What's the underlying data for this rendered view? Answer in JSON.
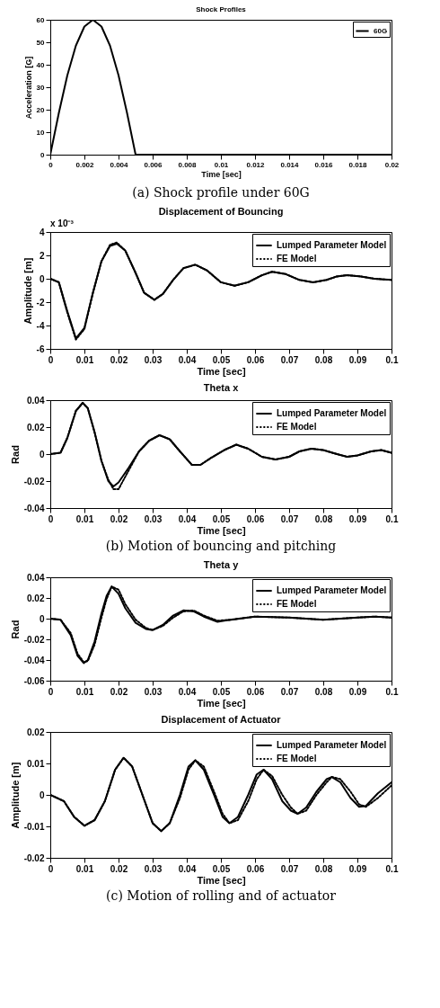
{
  "chart_data": [
    {
      "type": "line",
      "title": "Shock Profiles",
      "xlabel": "Time [sec]",
      "ylabel": "Acceleration [G]",
      "legend": "top right",
      "xlim": [
        0,
        0.02
      ],
      "xticks": [
        0,
        0.002,
        0.004,
        0.006,
        0.008,
        0.01,
        0.012,
        0.014,
        0.016,
        0.018,
        0.02
      ],
      "ylim": [
        0,
        60
      ],
      "yticks": [
        0,
        10,
        20,
        30,
        40,
        50,
        60
      ],
      "annotations": [
        "(a) Shock profile under 60G"
      ],
      "x": [
        0,
        0.0005,
        0.001,
        0.0015,
        0.002,
        0.0025,
        0.003,
        0.0035,
        0.004,
        0.0045,
        0.005,
        0.02
      ],
      "series": [
        {
          "name": "60G",
          "color": "#000000",
          "line_style": "solid",
          "values": [
            0,
            18.5,
            35.3,
            48.5,
            57,
            60,
            57,
            48.5,
            35.3,
            18.5,
            0,
            0
          ]
        }
      ]
    },
    {
      "type": "line",
      "title": "Displacement of Bouncing",
      "xlabel": "Time [sec]",
      "ylabel": "Amplitude [m]",
      "legend": "top right",
      "xlim": [
        0,
        0.1
      ],
      "xticks": [
        0,
        0.01,
        0.02,
        0.03,
        0.04,
        0.05,
        0.06,
        0.07,
        0.08,
        0.09,
        0.1
      ],
      "ylim": [
        -6,
        4
      ],
      "yticks": [
        -6,
        -4,
        -2,
        0,
        2,
        4
      ],
      "subtitle": "x 10⁻³",
      "x": [
        0,
        0.0025,
        0.005,
        0.0075,
        0.01,
        0.0125,
        0.015,
        0.0175,
        0.0195,
        0.022,
        0.025,
        0.0275,
        0.0305,
        0.033,
        0.036,
        0.039,
        0.0425,
        0.046,
        0.05,
        0.054,
        0.058,
        0.062,
        0.065,
        0.069,
        0.073,
        0.077,
        0.081,
        0.084,
        0.087,
        0.091,
        0.095,
        0.1
      ],
      "series": [
        {
          "name": "Lumped Parameter Model",
          "color": "#000000",
          "line_style": "solid",
          "values": [
            0,
            -0.3,
            -2.8,
            -5.1,
            -4.2,
            -1.2,
            1.5,
            2.8,
            3.0,
            2.4,
            0.5,
            -1.2,
            -1.8,
            -1.3,
            -0.1,
            0.9,
            1.2,
            0.7,
            -0.3,
            -0.6,
            -0.3,
            0.3,
            0.6,
            0.4,
            -0.1,
            -0.3,
            -0.1,
            0.2,
            0.3,
            0.2,
            0,
            -0.1
          ]
        },
        {
          "name": "FE Model",
          "color": "#000000",
          "line_style": "dotted",
          "values": [
            0,
            -0.3,
            -2.9,
            -5.2,
            -4.3,
            -1.2,
            1.5,
            2.9,
            3.1,
            2.4,
            0.5,
            -1.2,
            -1.8,
            -1.3,
            -0.1,
            0.9,
            1.2,
            0.7,
            -0.3,
            -0.6,
            -0.3,
            0.3,
            0.6,
            0.4,
            -0.1,
            -0.3,
            -0.1,
            0.2,
            0.3,
            0.2,
            0,
            -0.1
          ]
        }
      ]
    },
    {
      "type": "line",
      "title": "Theta x",
      "xlabel": "Time [sec]",
      "ylabel": "Rad",
      "legend": "top right",
      "xlim": [
        0,
        0.1
      ],
      "xticks": [
        0,
        0.01,
        0.02,
        0.03,
        0.04,
        0.05,
        0.06,
        0.07,
        0.08,
        0.09,
        0.1
      ],
      "ylim": [
        -0.04,
        0.04
      ],
      "yticks": [
        -0.04,
        -0.02,
        0,
        0.02,
        0.04
      ],
      "annotations": [
        "(b) Motion of bouncing and pitching"
      ],
      "x": [
        0,
        0.003,
        0.005,
        0.0075,
        0.0095,
        0.011,
        0.013,
        0.015,
        0.017,
        0.0185,
        0.02,
        0.023,
        0.026,
        0.029,
        0.032,
        0.035,
        0.038,
        0.0415,
        0.044,
        0.047,
        0.051,
        0.0545,
        0.058,
        0.062,
        0.066,
        0.07,
        0.073,
        0.0765,
        0.08,
        0.084,
        0.087,
        0.09,
        0.094,
        0.097,
        0.1
      ],
      "series": [
        {
          "name": "Lumped Parameter Model",
          "color": "#000000",
          "line_style": "solid",
          "values": [
            0,
            0.001,
            0.012,
            0.032,
            0.038,
            0.034,
            0.016,
            -0.005,
            -0.02,
            -0.024,
            -0.021,
            -0.01,
            0.002,
            0.01,
            0.014,
            0.011,
            0.002,
            -0.008,
            -0.008,
            -0.003,
            0.003,
            0.007,
            0.004,
            -0.002,
            -0.004,
            -0.002,
            0.002,
            0.004,
            0.003,
            0,
            -0.002,
            -0.001,
            0.002,
            0.003,
            0.001
          ]
        },
        {
          "name": "FE Model",
          "color": "#000000",
          "line_style": "dotted",
          "values": [
            0,
            0.001,
            0.012,
            0.032,
            0.038,
            0.034,
            0.016,
            -0.005,
            -0.019,
            -0.026,
            -0.026,
            -0.012,
            0.002,
            0.01,
            0.014,
            0.011,
            0.002,
            -0.008,
            -0.008,
            -0.003,
            0.003,
            0.007,
            0.004,
            -0.002,
            -0.004,
            -0.002,
            0.002,
            0.004,
            0.003,
            0,
            -0.002,
            -0.001,
            0.002,
            0.003,
            0.001
          ]
        }
      ]
    },
    {
      "type": "line",
      "title": "Theta y",
      "xlabel": "Time [sec]",
      "ylabel": "Rad",
      "legend": "top right",
      "xlim": [
        0,
        0.1
      ],
      "xticks": [
        0,
        0.01,
        0.02,
        0.03,
        0.04,
        0.05,
        0.06,
        0.07,
        0.08,
        0.09,
        0.1
      ],
      "ylim": [
        -0.06,
        0.04
      ],
      "yticks": [
        -0.06,
        -0.04,
        -0.02,
        0,
        0.02,
        0.04
      ],
      "x": [
        0,
        0.003,
        0.006,
        0.008,
        0.0098,
        0.011,
        0.013,
        0.015,
        0.0165,
        0.018,
        0.02,
        0.022,
        0.025,
        0.028,
        0.03,
        0.033,
        0.036,
        0.039,
        0.042,
        0.045,
        0.049,
        0.053,
        0.06,
        0.07,
        0.08,
        0.09,
        0.095,
        0.1
      ],
      "series": [
        {
          "name": "Lumped Parameter Model",
          "color": "#000000",
          "line_style": "solid",
          "values": [
            0,
            -0.001,
            -0.016,
            -0.036,
            -0.043,
            -0.04,
            -0.022,
            0.005,
            0.022,
            0.031,
            0.024,
            0.01,
            -0.004,
            -0.01,
            -0.011,
            -0.006,
            0.003,
            0.008,
            0.007,
            0.002,
            -0.003,
            -0.001,
            0.002,
            0.001,
            -0.001,
            0.001,
            0.002,
            0.001
          ]
        },
        {
          "name": "FE Model",
          "color": "#000000",
          "line_style": "dotted",
          "values": [
            0,
            -0.001,
            -0.014,
            -0.034,
            -0.042,
            -0.041,
            -0.025,
            0.001,
            0.019,
            0.031,
            0.028,
            0.014,
            -0.001,
            -0.009,
            -0.011,
            -0.007,
            0.001,
            0.007,
            0.008,
            0.003,
            -0.002,
            -0.001,
            0.002,
            0.001,
            -0.001,
            0.001,
            0.002,
            0.001
          ]
        }
      ]
    },
    {
      "type": "line",
      "title": "Displacement of Actuator",
      "xlabel": "Time [sec]",
      "ylabel": "Amplitude [m]",
      "legend": "top right",
      "xlim": [
        0,
        0.1
      ],
      "xticks": [
        0,
        0.01,
        0.02,
        0.03,
        0.04,
        0.05,
        0.06,
        0.07,
        0.08,
        0.09,
        0.1
      ],
      "ylim": [
        -0.02,
        0.02
      ],
      "yticks": [
        -0.02,
        -0.01,
        0,
        0.01,
        0.02
      ],
      "annotations": [
        "(c) Motion of rolling and of actuator"
      ],
      "x": [
        0,
        0.004,
        0.007,
        0.01,
        0.013,
        0.016,
        0.019,
        0.0215,
        0.024,
        0.027,
        0.03,
        0.0325,
        0.035,
        0.038,
        0.0405,
        0.0425,
        0.045,
        0.048,
        0.0505,
        0.0525,
        0.055,
        0.058,
        0.0605,
        0.0625,
        0.065,
        0.068,
        0.0705,
        0.0725,
        0.075,
        0.078,
        0.081,
        0.0825,
        0.085,
        0.088,
        0.0905,
        0.0925,
        0.096,
        0.1
      ],
      "series": [
        {
          "name": "Lumped Parameter Model",
          "color": "#000000",
          "line_style": "solid",
          "values": [
            0,
            -0.002,
            -0.007,
            -0.0098,
            -0.008,
            -0.002,
            0.008,
            0.0118,
            0.009,
            0,
            -0.009,
            -0.0115,
            -0.009,
            0,
            0.009,
            0.011,
            0.008,
            0,
            -0.007,
            -0.009,
            -0.007,
            0,
            0.0065,
            0.008,
            0.005,
            -0.002,
            -0.005,
            -0.006,
            -0.004,
            0.001,
            0.005,
            0.0057,
            0.004,
            -0.001,
            -0.0038,
            -0.0035,
            0.0005,
            0.004
          ]
        },
        {
          "name": "FE Model",
          "color": "#000000",
          "line_style": "dotted",
          "values": [
            0,
            -0.002,
            -0.007,
            -0.0098,
            -0.008,
            -0.002,
            0.008,
            0.0118,
            0.009,
            0,
            -0.009,
            -0.0115,
            -0.009,
            -0.001,
            0.008,
            0.011,
            0.009,
            0.001,
            -0.006,
            -0.009,
            -0.008,
            -0.002,
            0.005,
            0.008,
            0.006,
            0,
            -0.004,
            -0.006,
            -0.005,
            0,
            0.004,
            0.0057,
            0.005,
            0.001,
            -0.003,
            -0.0038,
            -0.001,
            0.003
          ]
        }
      ]
    }
  ]
}
